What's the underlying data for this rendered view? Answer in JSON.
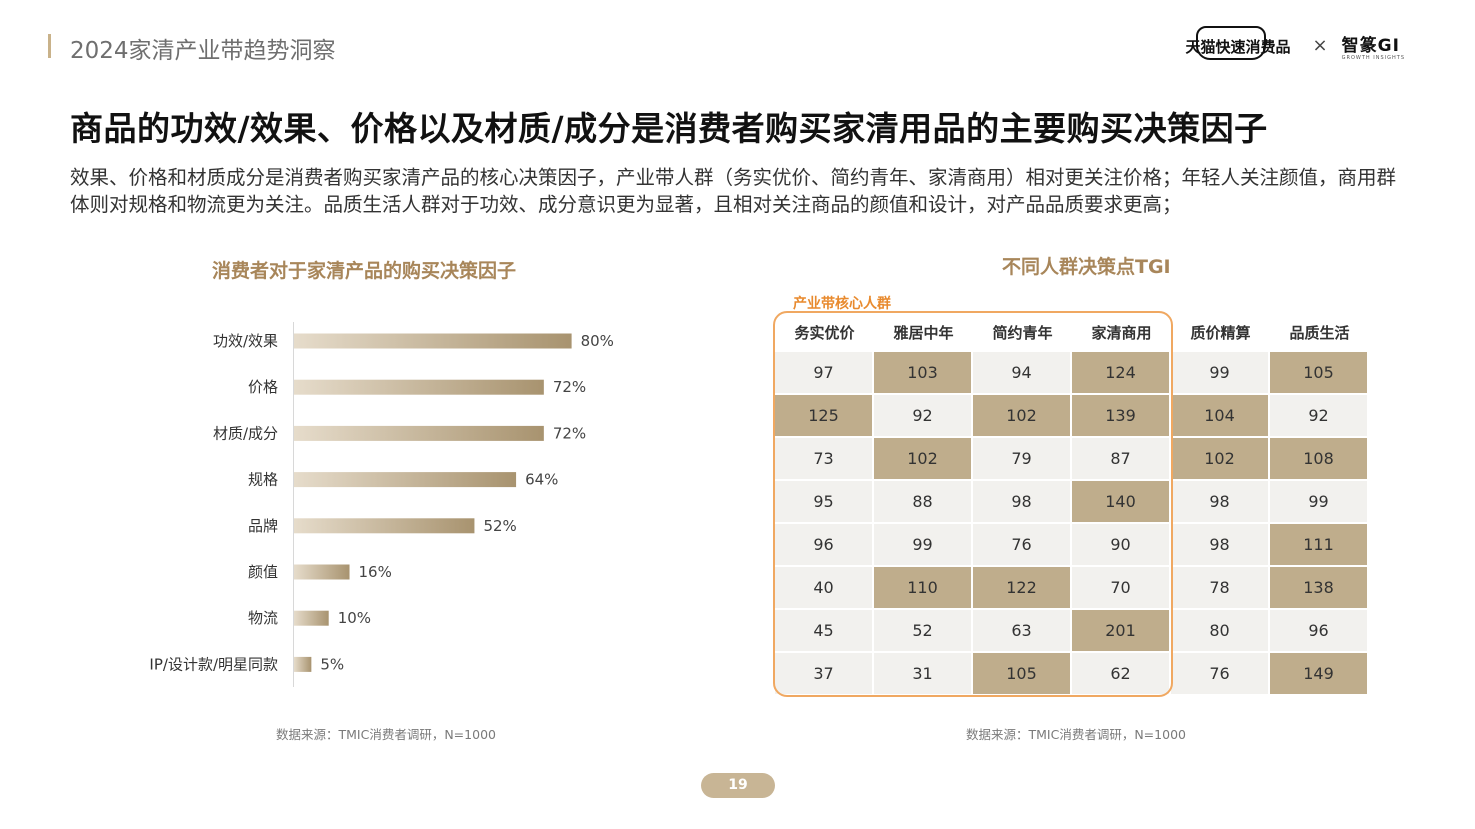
{
  "header": {
    "title": "2024家清产业带趋势洞察",
    "brand_tmall": "天猫快速消费品",
    "brand_sep": "×",
    "brand_gi": "智篆GI",
    "brand_gi_sub": "GROWTH INSIGHTS"
  },
  "main_title": "商品的功效/效果、价格以及材质/成分是消费者购买家清用品的主要购买决策因子",
  "description": "效果、价格和材质成分是消费者购买家清产品的核心决策因子，产业带人群（务实优价、简约青年、家清商用）相对更关注价格；年轻人关注颜值，商用群体则对规格和物流更为关注。品质生活人群对于功效、成分意识更为显著，且相对关注商品的颜值和设计，对产品品质要求更高；",
  "chart_data": [
    {
      "type": "bar",
      "orientation": "horizontal",
      "title": "消费者对于家清产品的购买决策因子",
      "categories": [
        "功效/效果",
        "价格",
        "材质/成分",
        "规格",
        "品牌",
        "颜值",
        "物流",
        "IP/设计款/明星同款"
      ],
      "values": [
        80,
        72,
        72,
        64,
        52,
        16,
        10,
        5
      ],
      "value_labels": [
        "80%",
        "72%",
        "72%",
        "64%",
        "52%",
        "16%",
        "10%",
        "5%"
      ],
      "unit": "%",
      "xlim": [
        0,
        100
      ],
      "colors": {
        "bar_start": "#e6dccb",
        "bar_end": "#a8936f"
      },
      "source": "数据来源：TMIC消费者调研，N=1000"
    },
    {
      "type": "table",
      "title": "不同人群决策点TGI",
      "group_label": "产业带核心人群",
      "columns": [
        "务实优价",
        "雅居中年",
        "简约青年",
        "家清商用",
        "质价精算",
        "品质生活"
      ],
      "rows": [
        [
          97,
          103,
          94,
          124,
          99,
          105
        ],
        [
          125,
          92,
          102,
          139,
          104,
          92
        ],
        [
          73,
          102,
          79,
          87,
          102,
          108
        ],
        [
          95,
          88,
          98,
          140,
          98,
          99
        ],
        [
          96,
          99,
          76,
          90,
          98,
          111
        ],
        [
          40,
          110,
          122,
          70,
          78,
          138
        ],
        [
          45,
          52,
          63,
          201,
          80,
          96
        ],
        [
          37,
          31,
          105,
          62,
          76,
          149
        ]
      ],
      "highlight_threshold": 100,
      "colors": {
        "highlight": "#bfad8c",
        "normal": "#f2f1ee",
        "group_border": "#f0a861"
      },
      "source": "数据来源：TMIC消费者调研，N=1000"
    }
  ],
  "page_number": "19"
}
